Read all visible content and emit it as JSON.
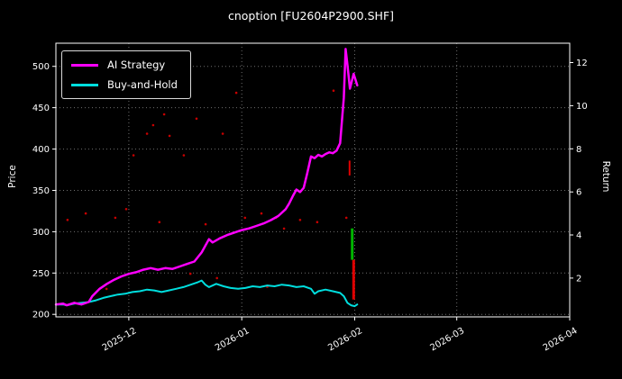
{
  "colors": {
    "background": "#000000",
    "text": "#ffffff",
    "grid": "#6e6e6e",
    "frame": "#ffffff"
  },
  "chart_data": {
    "type": "line",
    "title": "cnoption [FU2604P2900.SHF]",
    "ylabel_left": "Price",
    "ylabel_right": "Return",
    "grid": "dotted",
    "legend_position": "upper left",
    "x_axis": {
      "unit": "days from 2025-11-11",
      "range": [
        0,
        141
      ],
      "ticks": [
        {
          "day": 20,
          "label": "2025-12"
        },
        {
          "day": 51,
          "label": "2026-01"
        },
        {
          "day": 82,
          "label": "2026-02"
        },
        {
          "day": 110,
          "label": "2026-03"
        },
        {
          "day": 141,
          "label": "2026-04"
        }
      ]
    },
    "y_left": {
      "range": [
        197,
        528
      ],
      "ticks": [
        200,
        250,
        300,
        350,
        400,
        450,
        500
      ]
    },
    "y_right": {
      "range": [
        0.2,
        12.9
      ],
      "ticks": [
        2,
        4,
        6,
        8,
        10,
        12
      ]
    },
    "series": [
      {
        "name": "AI Strategy",
        "color": "#ff00ff",
        "axis": "left",
        "width": 2.5,
        "points": [
          [
            0,
            212
          ],
          [
            2,
            213
          ],
          [
            3,
            211
          ],
          [
            5,
            214
          ],
          [
            7,
            212
          ],
          [
            9,
            215
          ],
          [
            10,
            222
          ],
          [
            12,
            231
          ],
          [
            14,
            237
          ],
          [
            16,
            242
          ],
          [
            18,
            246
          ],
          [
            20,
            249
          ],
          [
            22,
            251
          ],
          [
            24,
            254
          ],
          [
            26,
            256
          ],
          [
            28,
            254
          ],
          [
            30,
            256
          ],
          [
            32,
            255
          ],
          [
            34,
            258
          ],
          [
            36,
            261
          ],
          [
            38,
            264
          ],
          [
            40,
            275
          ],
          [
            42,
            291
          ],
          [
            43,
            287
          ],
          [
            45,
            292
          ],
          [
            47,
            296
          ],
          [
            49,
            299
          ],
          [
            51,
            302
          ],
          [
            53,
            304
          ],
          [
            55,
            307
          ],
          [
            57,
            310
          ],
          [
            59,
            314
          ],
          [
            61,
            319
          ],
          [
            63,
            327
          ],
          [
            64,
            334
          ],
          [
            65,
            343
          ],
          [
            66,
            351
          ],
          [
            67,
            348
          ],
          [
            68,
            353
          ],
          [
            69,
            371
          ],
          [
            70,
            391
          ],
          [
            71,
            389
          ],
          [
            72,
            393
          ],
          [
            73,
            391
          ],
          [
            74,
            394
          ],
          [
            75,
            396
          ],
          [
            76,
            395
          ],
          [
            77,
            398
          ],
          [
            78,
            407
          ],
          [
            79,
            462
          ],
          [
            79.5,
            521
          ],
          [
            80,
            502
          ],
          [
            80.7,
            473
          ],
          [
            81.7,
            491
          ],
          [
            82.7,
            477
          ]
        ]
      },
      {
        "name": "Buy-and-Hold",
        "color": "#00dede",
        "axis": "left",
        "width": 2,
        "points": [
          [
            0,
            212
          ],
          [
            2,
            212
          ],
          [
            3,
            211
          ],
          [
            5,
            213
          ],
          [
            7,
            214
          ],
          [
            9,
            215
          ],
          [
            11,
            217
          ],
          [
            13,
            220
          ],
          [
            15,
            222
          ],
          [
            17,
            224
          ],
          [
            19,
            225
          ],
          [
            21,
            227
          ],
          [
            23,
            228
          ],
          [
            25,
            230
          ],
          [
            27,
            229
          ],
          [
            29,
            227
          ],
          [
            31,
            229
          ],
          [
            33,
            231
          ],
          [
            35,
            233
          ],
          [
            37,
            236
          ],
          [
            39,
            239
          ],
          [
            40,
            241
          ],
          [
            41,
            236
          ],
          [
            42,
            233
          ],
          [
            44,
            237
          ],
          [
            46,
            234
          ],
          [
            48,
            232
          ],
          [
            50,
            231
          ],
          [
            52,
            232
          ],
          [
            54,
            234
          ],
          [
            56,
            233
          ],
          [
            58,
            235
          ],
          [
            60,
            234
          ],
          [
            62,
            236
          ],
          [
            64,
            235
          ],
          [
            66,
            233
          ],
          [
            68,
            234
          ],
          [
            70,
            231
          ],
          [
            71,
            225
          ],
          [
            72,
            228
          ],
          [
            74,
            230
          ],
          [
            76,
            228
          ],
          [
            78,
            226
          ],
          [
            79,
            222
          ],
          [
            80,
            214
          ],
          [
            81,
            211
          ],
          [
            82,
            210
          ],
          [
            82.7,
            212
          ]
        ]
      }
    ],
    "scatter": {
      "name": "trade-return-markers",
      "color": "#c80000",
      "axis": "right",
      "marker_radius": 1.3,
      "points": [
        [
          3.2,
          4.7
        ],
        [
          8.2,
          5.0
        ],
        [
          13.9,
          1.5
        ],
        [
          16.3,
          4.8
        ],
        [
          19.3,
          5.2
        ],
        [
          21.3,
          7.7
        ],
        [
          25.0,
          8.7
        ],
        [
          26.7,
          9.1
        ],
        [
          28.4,
          4.6
        ],
        [
          29.7,
          9.6
        ],
        [
          31.2,
          8.6
        ],
        [
          32.2,
          10.7
        ],
        [
          35.1,
          7.7
        ],
        [
          36.9,
          2.2
        ],
        [
          38.6,
          9.4
        ],
        [
          41.1,
          4.5
        ],
        [
          44.2,
          2.0
        ],
        [
          45.8,
          8.7
        ],
        [
          49.5,
          10.6
        ],
        [
          51.9,
          4.8
        ],
        [
          56.4,
          5.0
        ],
        [
          58.0,
          1.6
        ],
        [
          60.4,
          4.8
        ],
        [
          62.6,
          4.3
        ],
        [
          67.0,
          4.7
        ],
        [
          71.7,
          4.6
        ],
        [
          76.2,
          10.7
        ],
        [
          79.7,
          4.8
        ]
      ]
    },
    "bars": [
      {
        "name": "signal-bar-red-upper",
        "day": 80.6,
        "from": 368,
        "to": 386,
        "color": "#e00000",
        "width": 2
      },
      {
        "name": "signal-bar-green",
        "day": 81.3,
        "from": 266,
        "to": 304,
        "color": "#00b400",
        "width": 3
      },
      {
        "name": "signal-bar-red-lower",
        "day": 81.7,
        "from": 218,
        "to": 266,
        "color": "#e00000",
        "width": 3
      }
    ]
  }
}
